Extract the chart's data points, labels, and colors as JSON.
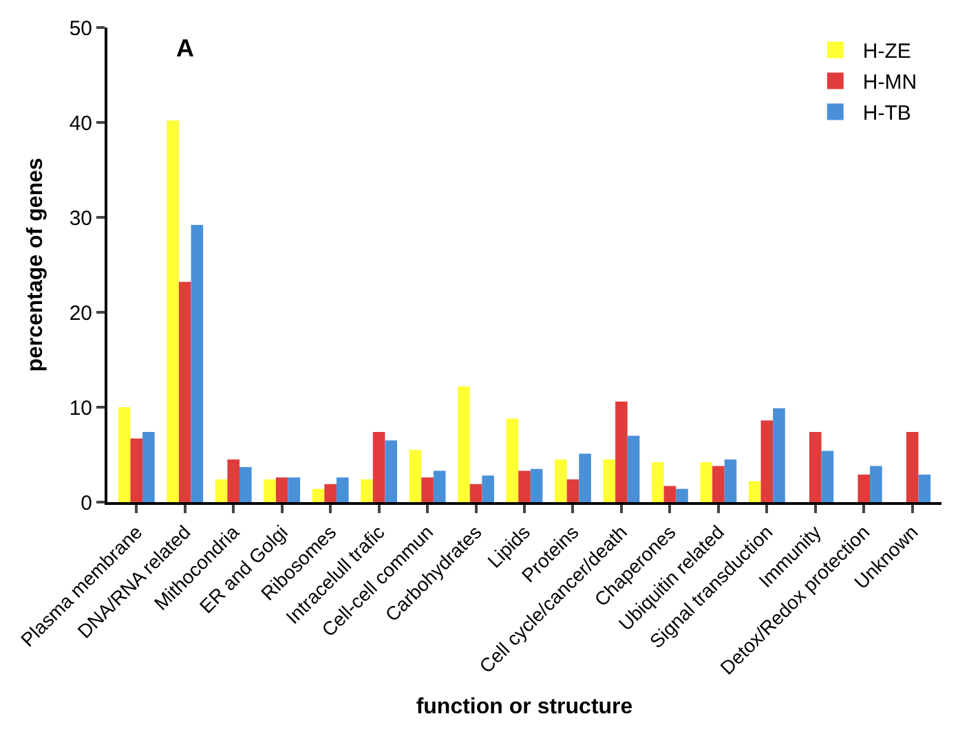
{
  "chart_data": {
    "type": "bar",
    "xlabel": "function or structure",
    "ylabel": "percentage of genes",
    "annotations": [
      "A"
    ],
    "categories": [
      "Plasma membrane",
      "DNA/RNA related",
      "Mithocondria",
      "ER and Golgi",
      "Ribosomes",
      "Intracelull trafic",
      "Cell-cell commun",
      "Carbohydrates",
      "Lipids",
      "Proteins",
      "Cell cycle/cancer/death",
      "Chaperones",
      "Ubiquitin related",
      "Signal transduction",
      "Immunity",
      "Detox/Redox protection",
      "Unknown"
    ],
    "series": [
      {
        "name": "H-ZE",
        "color": "#ffff33",
        "values": [
          10.0,
          40.2,
          2.4,
          2.4,
          1.4,
          2.4,
          5.5,
          12.2,
          8.8,
          4.5,
          4.5,
          4.2,
          4.2,
          2.2,
          0,
          0,
          0
        ]
      },
      {
        "name": "H-MN",
        "color": "#e03c3c",
        "values": [
          6.7,
          23.2,
          4.5,
          2.6,
          1.9,
          7.4,
          2.6,
          1.9,
          3.3,
          2.4,
          10.6,
          1.7,
          3.8,
          8.6,
          7.4,
          2.9,
          7.4
        ]
      },
      {
        "name": "H-TB",
        "color": "#4a90d9",
        "values": [
          7.4,
          29.2,
          3.7,
          2.6,
          2.6,
          6.5,
          3.3,
          2.8,
          3.5,
          5.1,
          7.0,
          1.4,
          4.5,
          9.9,
          5.4,
          3.8,
          2.9
        ]
      }
    ],
    "ylim": [
      0,
      50
    ],
    "yticks": [
      0,
      10,
      20,
      30,
      40,
      50
    ],
    "legend": "top right"
  }
}
